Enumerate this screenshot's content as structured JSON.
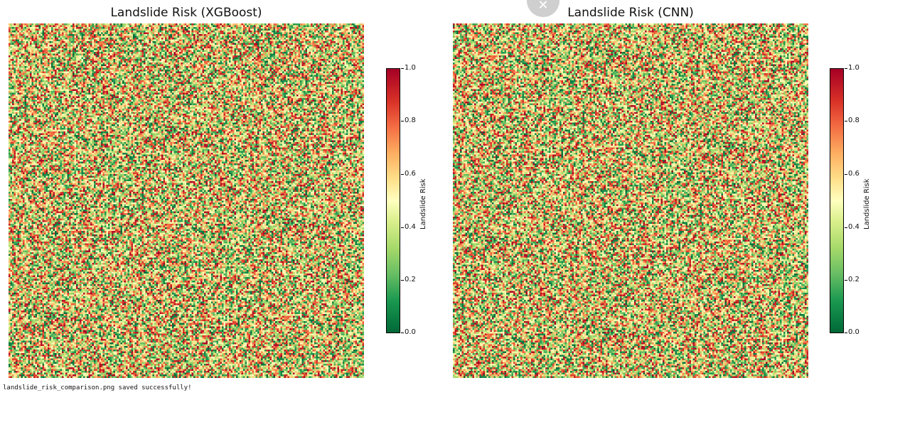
{
  "chart_data": [
    {
      "type": "heatmap",
      "title": "Landslide Risk (XGBoost)",
      "colorbar": {
        "label": "Landslide Risk",
        "range": [
          0.0,
          1.0
        ],
        "ticks": [
          "0.0",
          "0.2",
          "0.4",
          "0.6",
          "0.8",
          "1.0"
        ],
        "colormap": "RdYlGn_r"
      },
      "grid": false,
      "value_range": [
        0.0,
        1.0
      ]
    },
    {
      "type": "heatmap",
      "title": "Landslide Risk (CNN)",
      "colorbar": {
        "label": "Landslide Risk",
        "range": [
          0.0,
          1.0
        ],
        "ticks": [
          "0.0",
          "0.2",
          "0.4",
          "0.6",
          "0.8",
          "1.0"
        ],
        "colormap": "RdYlGn_r"
      },
      "grid": false,
      "value_range": [
        0.0,
        1.0
      ]
    }
  ],
  "output": {
    "log_text": "landslide_risk_comparison.png saved successfully!"
  },
  "overlay": {
    "close_glyph": "✕"
  },
  "colors": {
    "low": "#006837",
    "mid": "#ffffbf",
    "high": "#a50026"
  }
}
